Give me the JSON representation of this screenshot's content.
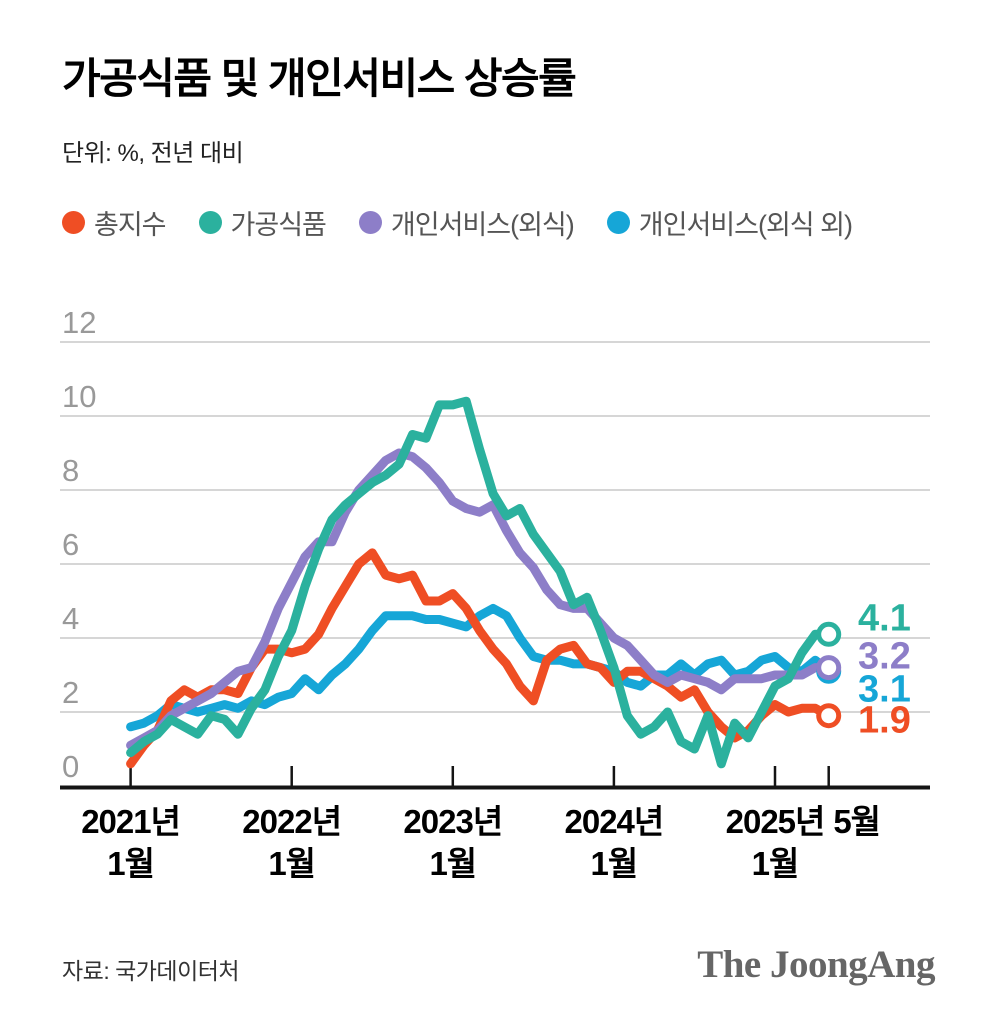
{
  "header": {
    "title": "가공식품 및 개인서비스 상승률",
    "unit_note": "단위: %, 전년 대비"
  },
  "legend": {
    "items": [
      {
        "label": "총지수",
        "color": "#EF4E24"
      },
      {
        "label": "가공식품",
        "color": "#2BB19E"
      },
      {
        "label": "개인서비스(외식)",
        "color": "#8D7EC8"
      },
      {
        "label": "개인서비스(외식 외)",
        "color": "#16A6D7"
      }
    ]
  },
  "chart_data": {
    "type": "line",
    "title": "가공식품 및 개인서비스 상승률",
    "unit": "%, 전년 대비",
    "x_unit": "month",
    "x_range": [
      "2021-01",
      "2025-05"
    ],
    "ylim": [
      0,
      12
    ],
    "grid": "horizontal",
    "y_ticks": [
      0,
      2,
      4,
      6,
      8,
      10,
      12
    ],
    "x_ticks": [
      {
        "month_index": 0,
        "line1": "2021년",
        "line2": "1월"
      },
      {
        "month_index": 12,
        "line1": "2022년",
        "line2": "1월"
      },
      {
        "month_index": 24,
        "line1": "2023년",
        "line2": "1월"
      },
      {
        "month_index": 36,
        "line1": "2024년",
        "line2": "1월"
      },
      {
        "month_index": 48,
        "line1": "2025년",
        "line2": "1월"
      },
      {
        "month_index": 52,
        "line1": "5월",
        "line2": ""
      }
    ],
    "series": [
      {
        "name": "총지수",
        "color": "#EF4E24",
        "end_label": "1.9",
        "values": [
          0.6,
          1.1,
          1.5,
          2.3,
          2.6,
          2.4,
          2.6,
          2.6,
          2.5,
          3.2,
          3.7,
          3.7,
          3.6,
          3.7,
          4.1,
          4.8,
          5.4,
          6.0,
          6.3,
          5.7,
          5.6,
          5.7,
          5.0,
          5.0,
          5.2,
          4.8,
          4.2,
          3.7,
          3.3,
          2.7,
          2.3,
          3.4,
          3.7,
          3.8,
          3.3,
          3.2,
          2.8,
          3.1,
          3.1,
          2.9,
          2.7,
          2.4,
          2.6,
          2.0,
          1.6,
          1.3,
          1.5,
          1.9,
          2.2,
          2.0,
          2.1,
          2.1,
          1.9
        ]
      },
      {
        "name": "가공식품",
        "color": "#2BB19E",
        "end_label": "4.1",
        "values": [
          0.9,
          1.2,
          1.4,
          1.8,
          1.6,
          1.4,
          1.9,
          1.8,
          1.4,
          2.1,
          2.6,
          3.5,
          4.2,
          5.4,
          6.4,
          7.2,
          7.6,
          7.9,
          8.2,
          8.4,
          8.7,
          9.5,
          9.4,
          10.3,
          10.3,
          10.4,
          9.1,
          7.9,
          7.3,
          7.5,
          6.8,
          6.3,
          5.8,
          4.9,
          5.1,
          4.2,
          3.2,
          1.9,
          1.4,
          1.6,
          2.0,
          1.2,
          1.0,
          1.9,
          0.6,
          1.7,
          1.3,
          2.0,
          2.7,
          2.9,
          3.6,
          4.1,
          4.1
        ]
      },
      {
        "name": "개인서비스(외식)",
        "color": "#8D7EC8",
        "end_label": "3.2",
        "values": [
          1.1,
          1.3,
          1.5,
          1.9,
          2.1,
          2.3,
          2.5,
          2.8,
          3.1,
          3.2,
          3.9,
          4.8,
          5.5,
          6.2,
          6.6,
          6.6,
          7.4,
          8.0,
          8.4,
          8.8,
          9.0,
          8.9,
          8.6,
          8.2,
          7.7,
          7.5,
          7.4,
          7.6,
          6.9,
          6.3,
          5.9,
          5.3,
          4.9,
          4.8,
          4.8,
          4.4,
          4.0,
          3.8,
          3.4,
          3.0,
          2.8,
          3.0,
          2.9,
          2.8,
          2.6,
          2.9,
          2.9,
          2.9,
          3.0,
          3.0,
          3.0,
          3.2,
          3.2
        ]
      },
      {
        "name": "개인서비스(외식 외)",
        "color": "#16A6D7",
        "end_label": "3.1",
        "values": [
          1.6,
          1.7,
          1.9,
          2.2,
          2.1,
          2.0,
          2.1,
          2.2,
          2.1,
          2.3,
          2.2,
          2.4,
          2.5,
          2.9,
          2.6,
          3.0,
          3.3,
          3.7,
          4.2,
          4.6,
          4.6,
          4.6,
          4.5,
          4.5,
          4.4,
          4.3,
          4.6,
          4.8,
          4.6,
          4.0,
          3.5,
          3.4,
          3.4,
          3.3,
          3.3,
          3.2,
          3.1,
          2.8,
          2.7,
          3.0,
          3.0,
          3.3,
          3.0,
          3.3,
          3.4,
          3.0,
          3.1,
          3.4,
          3.5,
          3.2,
          3.1,
          3.4,
          3.1
        ]
      }
    ]
  },
  "footer": {
    "source": "자료: 국가데이터처",
    "logo": "The JoongAng"
  }
}
